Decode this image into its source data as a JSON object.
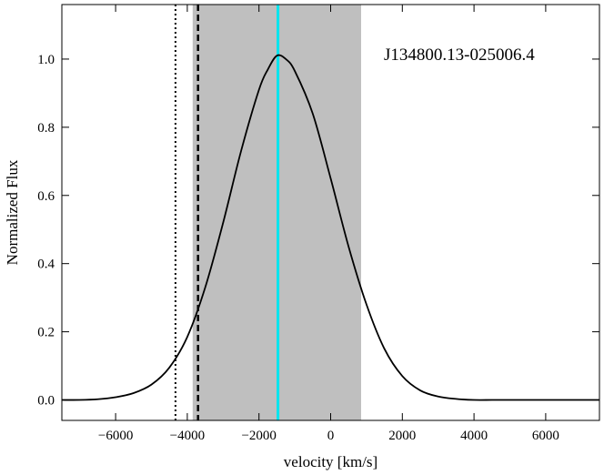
{
  "chart_data": {
    "type": "line",
    "title": "",
    "annotation": "J134800.13-025006.4",
    "xlabel": "velocity [km/s]",
    "ylabel": "Normalized Flux",
    "xlim": [
      -7500,
      7500
    ],
    "ylim": [
      -0.06,
      1.16
    ],
    "x_ticks": [
      -6000,
      -4000,
      -2000,
      0,
      2000,
      4000,
      6000
    ],
    "x_tick_labels": [
      "−6000",
      "−4000",
      "−2000",
      "0",
      "2000",
      "4000",
      "6000"
    ],
    "y_ticks": [
      0.0,
      0.2,
      0.4,
      0.6,
      0.8,
      1.0
    ],
    "y_tick_labels": [
      "0.0",
      "0.2",
      "0.4",
      "0.6",
      "0.8",
      "1.0"
    ],
    "grid": false,
    "shaded_region": {
      "x_start": -3850,
      "x_end": 850,
      "color": "#bfbfbf"
    },
    "vertical_lines": [
      {
        "x": -4330,
        "style": "dotted",
        "color": "#000000"
      },
      {
        "x": -3700,
        "style": "dashed",
        "color": "#000000"
      },
      {
        "x": -1470,
        "style": "solid",
        "color": "#00e5ee"
      }
    ],
    "series": [
      {
        "color": "#000000",
        "x": [
          -7500,
          -7000,
          -6500,
          -6000,
          -5500,
          -5000,
          -4500,
          -4000,
          -3500,
          -3000,
          -2500,
          -2000,
          -1750,
          -1500,
          -1250,
          -1000,
          -500,
          0,
          500,
          1000,
          1500,
          2000,
          2500,
          3000,
          3500,
          4000,
          4500,
          5000,
          5500,
          6000,
          6500,
          7000,
          7500
        ],
        "y": [
          0.0,
          0.0,
          0.002,
          0.008,
          0.02,
          0.045,
          0.095,
          0.185,
          0.33,
          0.52,
          0.73,
          0.91,
          0.97,
          1.01,
          1.0,
          0.965,
          0.84,
          0.65,
          0.45,
          0.28,
          0.15,
          0.07,
          0.028,
          0.01,
          0.003,
          0.0,
          0.0,
          0.0,
          0.0,
          0.0,
          0.0,
          0.0,
          0.0
        ]
      }
    ]
  }
}
